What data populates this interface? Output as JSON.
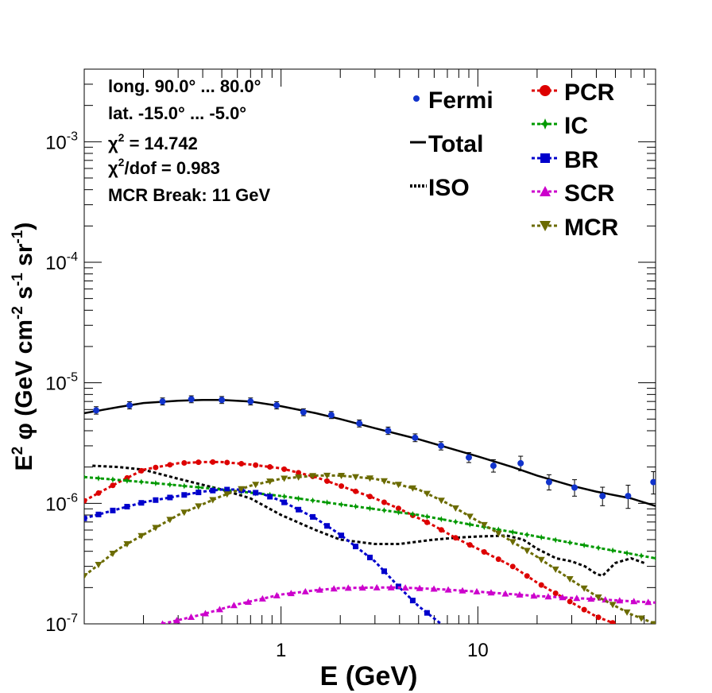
{
  "chart_data": {
    "type": "line",
    "xlabel": "E (GeV)",
    "ylabel_parts": {
      "a": "E",
      "b": "2",
      "c": "  φ (GeV cm",
      "d": "-2",
      "e": " s",
      "f": "-1",
      "g": " sr",
      "h": "-1",
      "i": ")"
    },
    "x_scale": "log",
    "y_scale": "log",
    "xlim": [
      0.1,
      80
    ],
    "ylim": [
      1e-07,
      0.004
    ],
    "x_ticks": [
      {
        "value": 1,
        "label": "1"
      },
      {
        "value": 10,
        "label": "10"
      }
    ],
    "y_ticks": [
      {
        "value": 1e-07,
        "base": "10",
        "exp": "-7"
      },
      {
        "value": 1e-06,
        "base": "10",
        "exp": "-6"
      },
      {
        "value": 1e-05,
        "base": "10",
        "exp": "-5"
      },
      {
        "value": 0.0001,
        "base": "10",
        "exp": "-4"
      },
      {
        "value": 0.001,
        "base": "10",
        "exp": "-3"
      }
    ],
    "info": [
      {
        "text": "long. 90.0° ... 80.0°"
      },
      {
        "text": "lat. -15.0° ... -5.0°"
      },
      {
        "chi": "χ",
        "sup": "2",
        "rest": " = 14.742"
      },
      {
        "chi": "χ",
        "sup": "2",
        "rest": "/dof = 0.983"
      },
      {
        "text": "MCR Break: 11 GeV"
      }
    ],
    "legend_left": [
      {
        "label": "Fermi",
        "style": "point"
      },
      {
        "label": "Total",
        "style": "solid"
      },
      {
        "label": "ISO",
        "style": "dotted"
      }
    ],
    "legend_right": [
      {
        "label": "PCR",
        "color": "#dd0000",
        "marker": "circle"
      },
      {
        "label": "IC",
        "color": "#009900",
        "marker": "star"
      },
      {
        "label": "BR",
        "color": "#0000cc",
        "marker": "square"
      },
      {
        "label": "SCR",
        "color": "#cc00cc",
        "marker": "triangle-up"
      },
      {
        "label": "MCR",
        "color": "#6b6b00",
        "marker": "triangle-down"
      }
    ],
    "fermi": {
      "color": "#1133cc",
      "points": [
        {
          "x": 0.115,
          "y": 5.9e-06,
          "err": 1.5e-07
        },
        {
          "x": 0.17,
          "y": 6.5e-06,
          "err": 1.5e-07
        },
        {
          "x": 0.25,
          "y": 7e-06,
          "err": 1.5e-07
        },
        {
          "x": 0.35,
          "y": 7.3e-06,
          "err": 1.5e-07
        },
        {
          "x": 0.5,
          "y": 7.2e-06,
          "err": 1.5e-07
        },
        {
          "x": 0.7,
          "y": 7e-06,
          "err": 1.5e-07
        },
        {
          "x": 0.95,
          "y": 6.5e-06,
          "err": 1.5e-07
        },
        {
          "x": 1.3,
          "y": 5.7e-06,
          "err": 1.2e-07
        },
        {
          "x": 1.8,
          "y": 5.4e-06,
          "err": 1.2e-07
        },
        {
          "x": 2.5,
          "y": 4.6e-06,
          "err": 1e-07
        },
        {
          "x": 3.5,
          "y": 4e-06,
          "err": 1e-07
        },
        {
          "x": 4.8,
          "y": 3.5e-06,
          "err": 1e-07
        },
        {
          "x": 6.5,
          "y": 3e-06,
          "err": 1e-07
        },
        {
          "x": 9.0,
          "y": 2.4e-06,
          "err": 1.2e-07
        },
        {
          "x": 12.0,
          "y": 2.05e-06,
          "err": 1.5e-07
        },
        {
          "x": 16.5,
          "y": 2.15e-06,
          "err": 2e-07
        },
        {
          "x": 23.0,
          "y": 1.5e-06,
          "err": 1.5e-07
        },
        {
          "x": 31.0,
          "y": 1.35e-06,
          "err": 1.5e-07
        },
        {
          "x": 43.0,
          "y": 1.15e-06,
          "err": 1.5e-07
        },
        {
          "x": 58.0,
          "y": 1.15e-06,
          "err": 2e-07
        },
        {
          "x": 78.0,
          "y": 1.5e-06,
          "err": 2.5e-07
        }
      ]
    },
    "series": [
      {
        "name": "Total",
        "color": "#000000",
        "dash": "",
        "marker": "none",
        "x": [
          0.1,
          0.15,
          0.2,
          0.3,
          0.4,
          0.5,
          0.7,
          1.0,
          1.5,
          2.0,
          3.0,
          5.0,
          7.0,
          10.0,
          15.0,
          20.0,
          30.0,
          40.0,
          60.0,
          80.0
        ],
        "y": [
          5.6e-06,
          6.3e-06,
          6.8e-06,
          7.1e-06,
          7.2e-06,
          7.2e-06,
          7e-06,
          6.4e-06,
          5.6e-06,
          5e-06,
          4.2e-06,
          3.4e-06,
          2.9e-06,
          2.45e-06,
          2e-06,
          1.7e-06,
          1.4e-06,
          1.25e-06,
          1.1e-06,
          9.5e-07
        ]
      },
      {
        "name": "ISO",
        "color": "#000000",
        "dash": "4,3",
        "marker": "none",
        "x": [
          0.11,
          0.15,
          0.2,
          0.3,
          0.5,
          0.7,
          1.0,
          1.5,
          2.0,
          3.0,
          4.0,
          6.0,
          8.0,
          10.0,
          14.0,
          17.0,
          20.0,
          25.0,
          30.0,
          35.0,
          40.0,
          43.0,
          50.0,
          60.0,
          70.0
        ],
        "y": [
          2.05e-06,
          2e-06,
          1.9e-06,
          1.6e-06,
          1.3e-06,
          1.1e-06,
          8e-07,
          6e-07,
          5e-07,
          4.6e-07,
          4.6e-07,
          5e-07,
          5.2e-07,
          5.3e-07,
          5.4e-07,
          5e-07,
          4.2e-07,
          3.5e-07,
          3.3e-07,
          3e-07,
          2.6e-07,
          2.5e-07,
          3.2e-07,
          3.5e-07,
          3.2e-07
        ]
      },
      {
        "name": "PCR",
        "color": "#dd0000",
        "dash": "4,3",
        "marker": "circle",
        "x": [
          0.1,
          0.15,
          0.2,
          0.3,
          0.4,
          0.5,
          0.7,
          1.0,
          1.5,
          2.0,
          3.0,
          4.0,
          6.0,
          8.0,
          10.0,
          15.0,
          20.0,
          30.0,
          40.0,
          50.0
        ],
        "y": [
          1.05e-06,
          1.5e-06,
          1.9e-06,
          2.15e-06,
          2.2e-06,
          2.2e-06,
          2.1e-06,
          1.95e-06,
          1.65e-06,
          1.4e-06,
          1.1e-06,
          9e-07,
          6.5e-07,
          5e-07,
          4.2e-07,
          3e-07,
          2.2e-07,
          1.5e-07,
          1.15e-07,
          1e-07
        ]
      },
      {
        "name": "IC",
        "color": "#009900",
        "dash": "4,3",
        "marker": "star",
        "x": [
          0.1,
          0.2,
          0.5,
          1.0,
          2.0,
          5.0,
          10.0,
          20.0,
          40.0,
          80.0
        ],
        "y": [
          1.65e-06,
          1.5e-06,
          1.3e-06,
          1.15e-06,
          9.8e-07,
          8e-07,
          6.5e-07,
          5.3e-07,
          4.3e-07,
          3.5e-07
        ]
      },
      {
        "name": "BR",
        "color": "#0000cc",
        "dash": "4,3",
        "marker": "square",
        "x": [
          0.1,
          0.15,
          0.2,
          0.3,
          0.4,
          0.5,
          0.6,
          0.8,
          1.0,
          1.5,
          2.0,
          3.0,
          4.0,
          5.0,
          6.5
        ],
        "y": [
          7.5e-07,
          9e-07,
          1.02e-06,
          1.15e-06,
          1.25e-06,
          1.3e-06,
          1.3e-06,
          1.2e-06,
          1.05e-06,
          7.5e-07,
          5.5e-07,
          3.3e-07,
          2e-07,
          1.4e-07,
          1e-07
        ]
      },
      {
        "name": "SCR",
        "color": "#cc00cc",
        "dash": "4,3",
        "marker": "triangle-up",
        "x": [
          0.25,
          0.4,
          0.6,
          1.0,
          1.5,
          2.0,
          3.0,
          4.0,
          6.0,
          10.0,
          20.0,
          40.0,
          80.0
        ],
        "y": [
          1e-07,
          1.2e-07,
          1.45e-07,
          1.75e-07,
          1.9e-07,
          1.98e-07,
          2e-07,
          2e-07,
          1.95e-07,
          1.85e-07,
          1.7e-07,
          1.6e-07,
          1.5e-07
        ]
      },
      {
        "name": "MCR",
        "color": "#6b6b00",
        "dash": "4,3",
        "marker": "triangle-down",
        "x": [
          0.1,
          0.15,
          0.2,
          0.3,
          0.5,
          0.7,
          1.0,
          1.5,
          2.0,
          3.0,
          5.0,
          7.0,
          11.0,
          15.0,
          20.0,
          30.0,
          40.0,
          60.0,
          80.0
        ],
        "y": [
          2.5e-07,
          4.2e-07,
          5.5e-07,
          8e-07,
          1.15e-06,
          1.4e-06,
          1.6e-06,
          1.7e-06,
          1.7e-06,
          1.6e-06,
          1.3e-06,
          1e-06,
          6.5e-07,
          4.8e-07,
          3.6e-07,
          2.3e-07,
          1.7e-07,
          1.2e-07,
          1e-07
        ]
      }
    ]
  }
}
